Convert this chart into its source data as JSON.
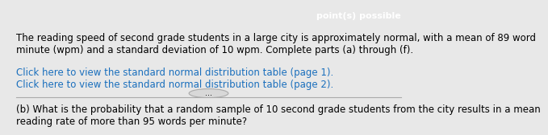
{
  "header_text": "point(s) possible",
  "header_bg": "#cc0000",
  "header_text_color": "#ffffff",
  "body_bg": "#e8e8e8",
  "main_text": "The reading speed of second grade students in a large city is approximately normal, with a mean of 89 word\nminute (wpm) and a standard deviation of 10 wpm. Complete parts (a) through (f).",
  "link1": "Click here to view the standard normal distribution table (page 1).",
  "link2": "Click here to view the standard normal distribution table (page 2).",
  "link_color": "#1a6fbd",
  "dots_text": "...",
  "part_b_text": "(b) What is the probability that a random sample of 10 second grade students from the city results in a mean\nreading rate of more than 95 words per minute?",
  "main_fontsize": 8.5,
  "link_fontsize": 8.5,
  "part_b_fontsize": 8.5,
  "divider_color": "#aaaaaa"
}
